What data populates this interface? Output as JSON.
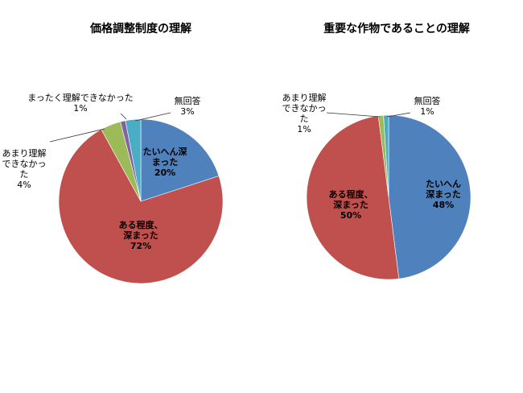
{
  "chart_data": [
    {
      "type": "pie",
      "title": "価格調整制度の理解",
      "slices": [
        {
          "name": "たいへん深まった",
          "label_lines": [
            "たいへん深",
            "まった"
          ],
          "value": 20,
          "pct_label": "20%",
          "color": "#4F81BD"
        },
        {
          "name": "ある程度、深まった",
          "label_lines": [
            "ある程度、",
            "深まった"
          ],
          "value": 72,
          "pct_label": "72%",
          "color": "#C0504D"
        },
        {
          "name": "あまり理解できなかった",
          "label_lines": [
            "あまり理解",
            "できなかっ",
            "た"
          ],
          "value": 4,
          "pct_label": "4%",
          "color": "#9BBB59"
        },
        {
          "name": "まったく理解できなかった",
          "label_lines": [
            "まったく理解できなかった"
          ],
          "value": 1,
          "pct_label": "1%",
          "color": "#8064A2"
        },
        {
          "name": "無回答",
          "label_lines": [
            "無回答"
          ],
          "value": 3,
          "pct_label": "3%",
          "color": "#4BACC6"
        }
      ]
    },
    {
      "type": "pie",
      "title": "重要な作物であることの理解",
      "slices": [
        {
          "name": "たいへん深まった",
          "label_lines": [
            "たいへん",
            "深まった"
          ],
          "value": 48,
          "pct_label": "48%",
          "color": "#4F81BD"
        },
        {
          "name": "ある程度、深まった",
          "label_lines": [
            "ある程度、",
            "深まった"
          ],
          "value": 50,
          "pct_label": "50%",
          "color": "#C0504D"
        },
        {
          "name": "あまり理解できなかった",
          "label_lines": [
            "あまり理解",
            "できなかっ",
            "た"
          ],
          "value": 1,
          "pct_label": "1%",
          "color": "#9BBB59"
        },
        {
          "name": "無回答",
          "label_lines": [
            "無回答"
          ],
          "value": 1,
          "pct_label": "1%",
          "color": "#4BACC6"
        }
      ]
    }
  ]
}
